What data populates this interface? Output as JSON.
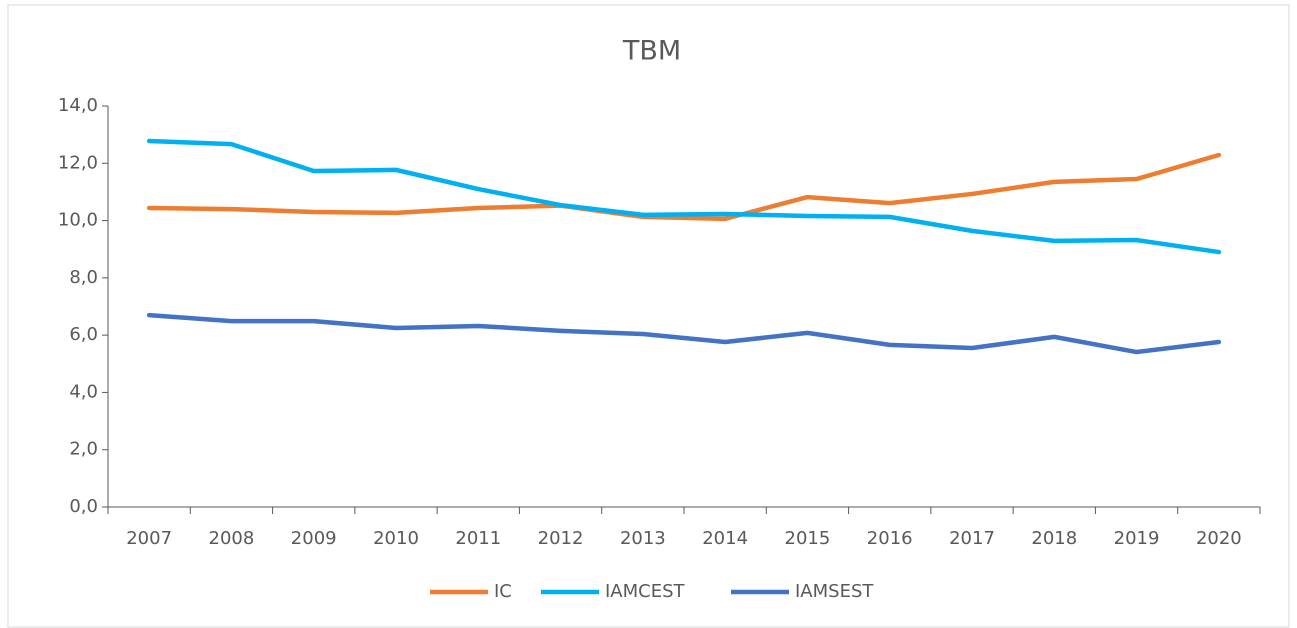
{
  "chart_data": {
    "type": "line",
    "title": "TBM",
    "categories": [
      "2007",
      "2008",
      "2009",
      "2010",
      "2011",
      "2012",
      "2013",
      "2014",
      "2015",
      "2016",
      "2017",
      "2018",
      "2019",
      "2020"
    ],
    "series": [
      {
        "name": "IC",
        "color": "#ed7d31",
        "values": [
          10.44,
          10.4,
          10.3,
          10.27,
          10.44,
          10.52,
          10.13,
          10.06,
          10.82,
          10.61,
          10.93,
          11.35,
          11.45,
          12.29
        ]
      },
      {
        "name": "IAMCEST",
        "color": "#00b0f0",
        "values": [
          12.78,
          12.67,
          11.73,
          11.77,
          11.1,
          10.54,
          10.2,
          10.23,
          10.16,
          10.13,
          9.64,
          9.29,
          9.32,
          8.9
        ]
      },
      {
        "name": "IAMSEST",
        "color": "#4472c4",
        "values": [
          6.7,
          6.49,
          6.49,
          6.25,
          6.32,
          6.15,
          6.04,
          5.76,
          6.08,
          5.66,
          5.55,
          5.94,
          5.41,
          5.76
        ]
      }
    ],
    "ylim": [
      0,
      14
    ],
    "yticks": [
      {
        "value": 0,
        "label": "0,0"
      },
      {
        "value": 2,
        "label": "2,0"
      },
      {
        "value": 4,
        "label": "4,0"
      },
      {
        "value": 6,
        "label": "6,0"
      },
      {
        "value": 8,
        "label": "8,0"
      },
      {
        "value": 10,
        "label": "10,0"
      },
      {
        "value": 12,
        "label": "12,0"
      },
      {
        "value": 14,
        "label": "14,0"
      }
    ],
    "grid": false,
    "legend": "bottom"
  }
}
